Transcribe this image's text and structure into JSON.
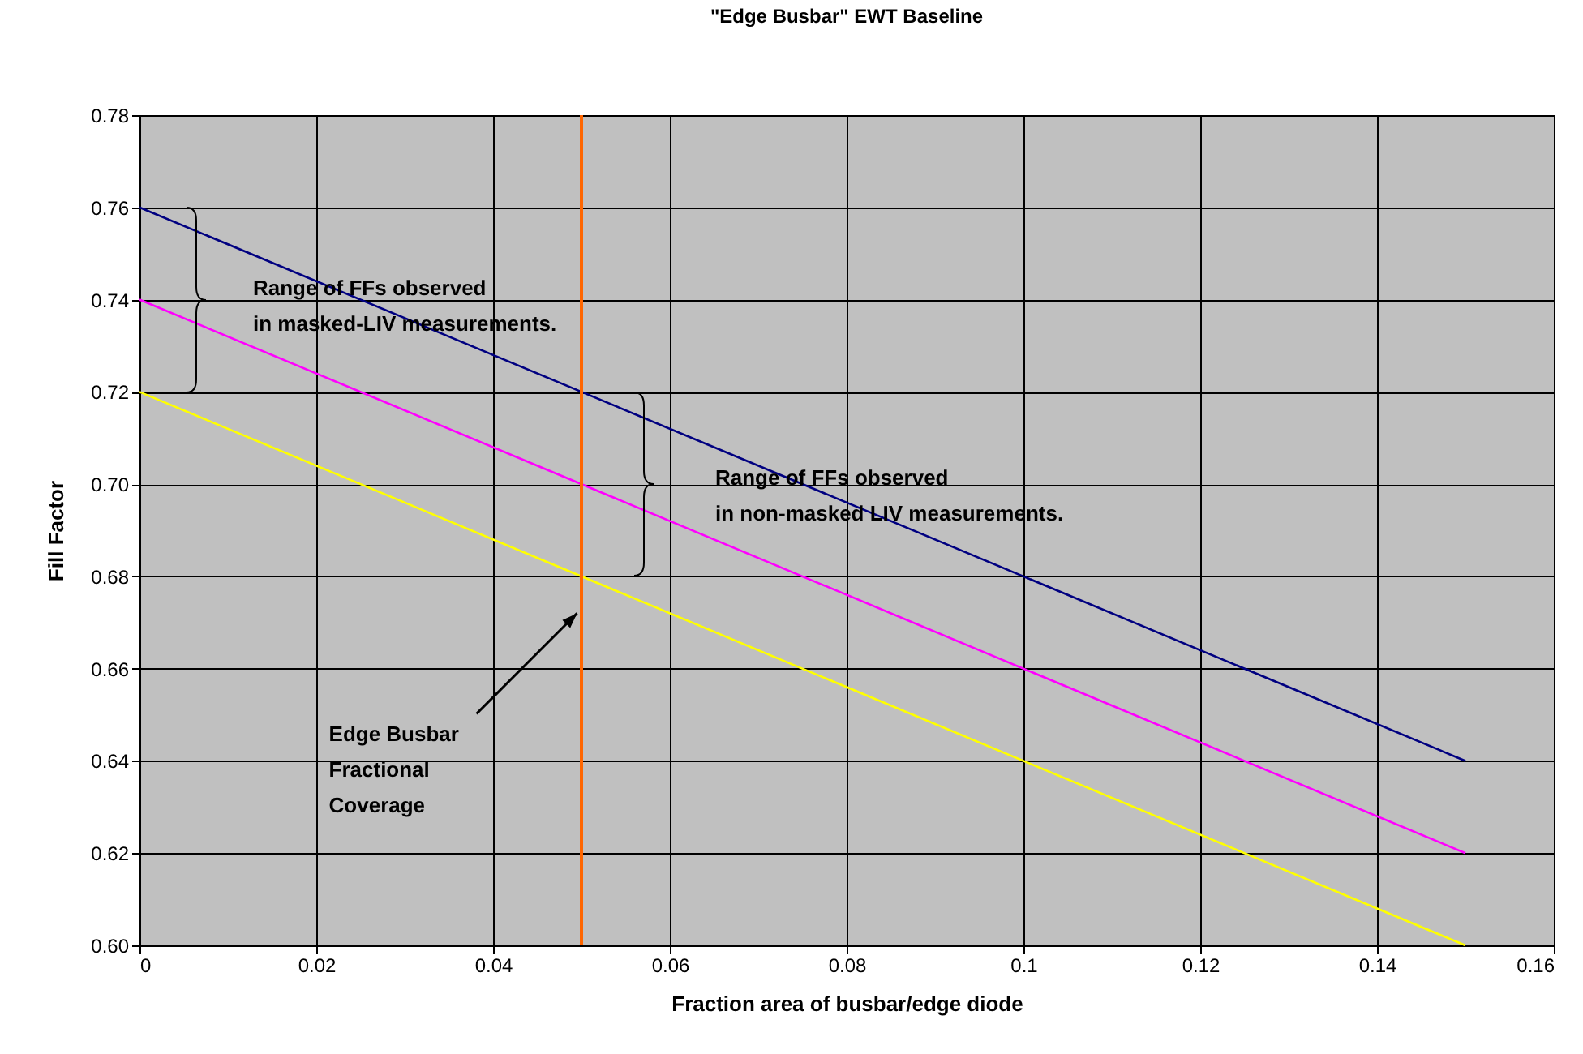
{
  "chart_data": {
    "type": "line",
    "title": "\"Edge Busbar\" EWT Baseline",
    "xlabel": "Fraction area of busbar/edge diode",
    "ylabel": "Fill Factor",
    "x": [
      0,
      0.15
    ],
    "series": [
      {
        "color": "#000080",
        "values": [
          0.76,
          0.64
        ]
      },
      {
        "color": "#ff00ff",
        "values": [
          0.74,
          0.62
        ]
      },
      {
        "color": "#ffff00",
        "values": [
          0.72,
          0.6
        ]
      }
    ],
    "xlim": [
      0,
      0.16
    ],
    "xticks": [
      0,
      0.02,
      0.04,
      0.06,
      0.08,
      0.1,
      0.12,
      0.14,
      0.16
    ],
    "ylim": [
      0.6,
      0.78
    ],
    "yticks": [
      {
        "value": 0.6,
        "label": "0.60"
      },
      0.62,
      0.64,
      0.66,
      0.68,
      {
        "value": 0.7,
        "label": "0.70"
      },
      0.72,
      0.74,
      0.76,
      0.78
    ],
    "ref_lines": [
      {
        "axis": "x",
        "value": 0.05,
        "color": "#ff6600"
      }
    ],
    "annotations": [
      "Range of FFs observed\nin masked-LIV measurements.",
      "Range of FFs observed\nin non-masked LIV measurements.",
      {
        "text": "Edge Busbar\nFractional\nCoverage",
        "x": 0.0495,
        "y": 0.672
      }
    ],
    "grid": true,
    "legend": false,
    "marker": "none",
    "line_style": "solid"
  }
}
